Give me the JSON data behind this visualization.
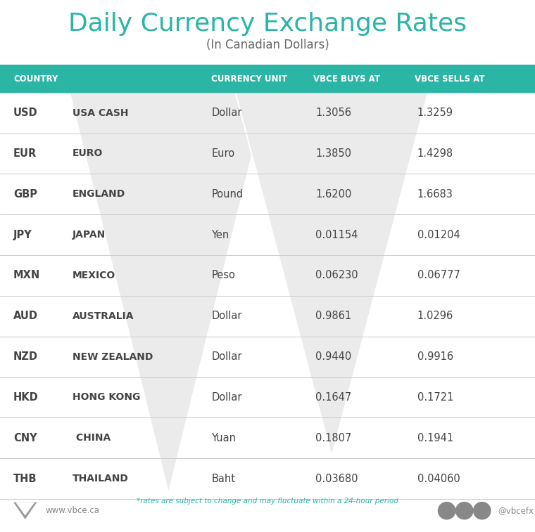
{
  "title": "Daily Currency Exchange Rates",
  "subtitle": "(In Canadian Dollars)",
  "title_color": "#2ab5a5",
  "subtitle_color": "#666666",
  "header_bg": "#2ab5a5",
  "header_text_color": "#ffffff",
  "header_labels": [
    "COUNTRY",
    "CURRENCY UNIT",
    "VBCE BUYS AT",
    "VBCE SELLS AT"
  ],
  "rows": [
    [
      "USD",
      "USA CASH",
      "Dollar",
      "1.3056",
      "1.3259"
    ],
    [
      "EUR",
      "EURO",
      "Euro",
      "1.3850",
      "1.4298"
    ],
    [
      "GBP",
      "ENGLAND",
      "Pound",
      "1.6200",
      "1.6683"
    ],
    [
      "JPY",
      "JAPAN",
      "Yen",
      "0.01154",
      "0.01204"
    ],
    [
      "MXN",
      "MEXICO",
      "Peso",
      "0.06230",
      "0.06777"
    ],
    [
      "AUD",
      "AUSTRALIA",
      "Dollar",
      "0.9861",
      "1.0296"
    ],
    [
      "NZD",
      "NEW ZEALAND",
      "Dollar",
      "0.9440",
      "0.9916"
    ],
    [
      "HKD",
      "HONG KONG",
      "Dollar",
      "0.1647",
      "0.1721"
    ],
    [
      "CNY",
      " CHINA",
      "Yuan",
      "0.1807",
      "0.1941"
    ],
    [
      "THB",
      "THAILAND",
      "Baht",
      "0.03680",
      "0.04060"
    ]
  ],
  "row_text_color": "#444444",
  "row_line_color": "#cccccc",
  "bg_color": "#ffffff",
  "footer_note": "*rates are subject to change and may fluctuate within a 24-hour period",
  "footer_note_color": "#2ab5a5",
  "footer_url": "www.vbce.ca",
  "footer_handle": "@vbcefx",
  "footer_color": "#888888",
  "watermark_color": "#ebebeb"
}
